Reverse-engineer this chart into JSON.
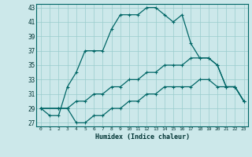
{
  "xlabel": "Humidex (Indice chaleur)",
  "bg_color": "#cce8ea",
  "grid_color": "#99cccc",
  "line_color": "#006666",
  "xlim": [
    -0.5,
    23.5
  ],
  "ylim": [
    26.5,
    43.5
  ],
  "yticks": [
    27,
    29,
    31,
    33,
    35,
    37,
    39,
    41,
    43
  ],
  "xticks": [
    0,
    1,
    2,
    3,
    4,
    5,
    6,
    7,
    8,
    9,
    10,
    11,
    12,
    13,
    14,
    15,
    16,
    17,
    18,
    19,
    20,
    21,
    22,
    23
  ],
  "curve1_x": [
    0,
    1,
    2,
    3,
    4,
    5,
    6,
    7,
    8,
    9,
    10,
    11,
    12,
    13,
    14,
    15,
    16,
    17,
    18,
    19,
    20,
    21,
    22,
    23
  ],
  "curve1_y": [
    29,
    28,
    28,
    32,
    34,
    37,
    37,
    37,
    40,
    42,
    42,
    42,
    43,
    43,
    42,
    41,
    42,
    38,
    36,
    36,
    35,
    32,
    32,
    30
  ],
  "curve2_x": [
    0,
    2,
    3,
    4,
    5,
    6,
    7,
    8,
    9,
    10,
    11,
    12,
    13,
    14,
    15,
    16,
    17,
    18,
    19,
    20,
    21,
    22,
    23
  ],
  "curve2_y": [
    29,
    29,
    29,
    30,
    30,
    31,
    31,
    32,
    32,
    33,
    33,
    34,
    34,
    35,
    35,
    35,
    36,
    36,
    36,
    35,
    32,
    32,
    30
  ],
  "curve3_x": [
    0,
    2,
    3,
    4,
    5,
    6,
    7,
    8,
    9,
    10,
    11,
    12,
    13,
    14,
    15,
    16,
    17,
    18,
    19,
    20,
    21,
    22,
    23
  ],
  "curve3_y": [
    29,
    29,
    29,
    27,
    27,
    28,
    28,
    29,
    29,
    30,
    30,
    31,
    31,
    32,
    32,
    32,
    32,
    33,
    33,
    32,
    32,
    32,
    30
  ]
}
